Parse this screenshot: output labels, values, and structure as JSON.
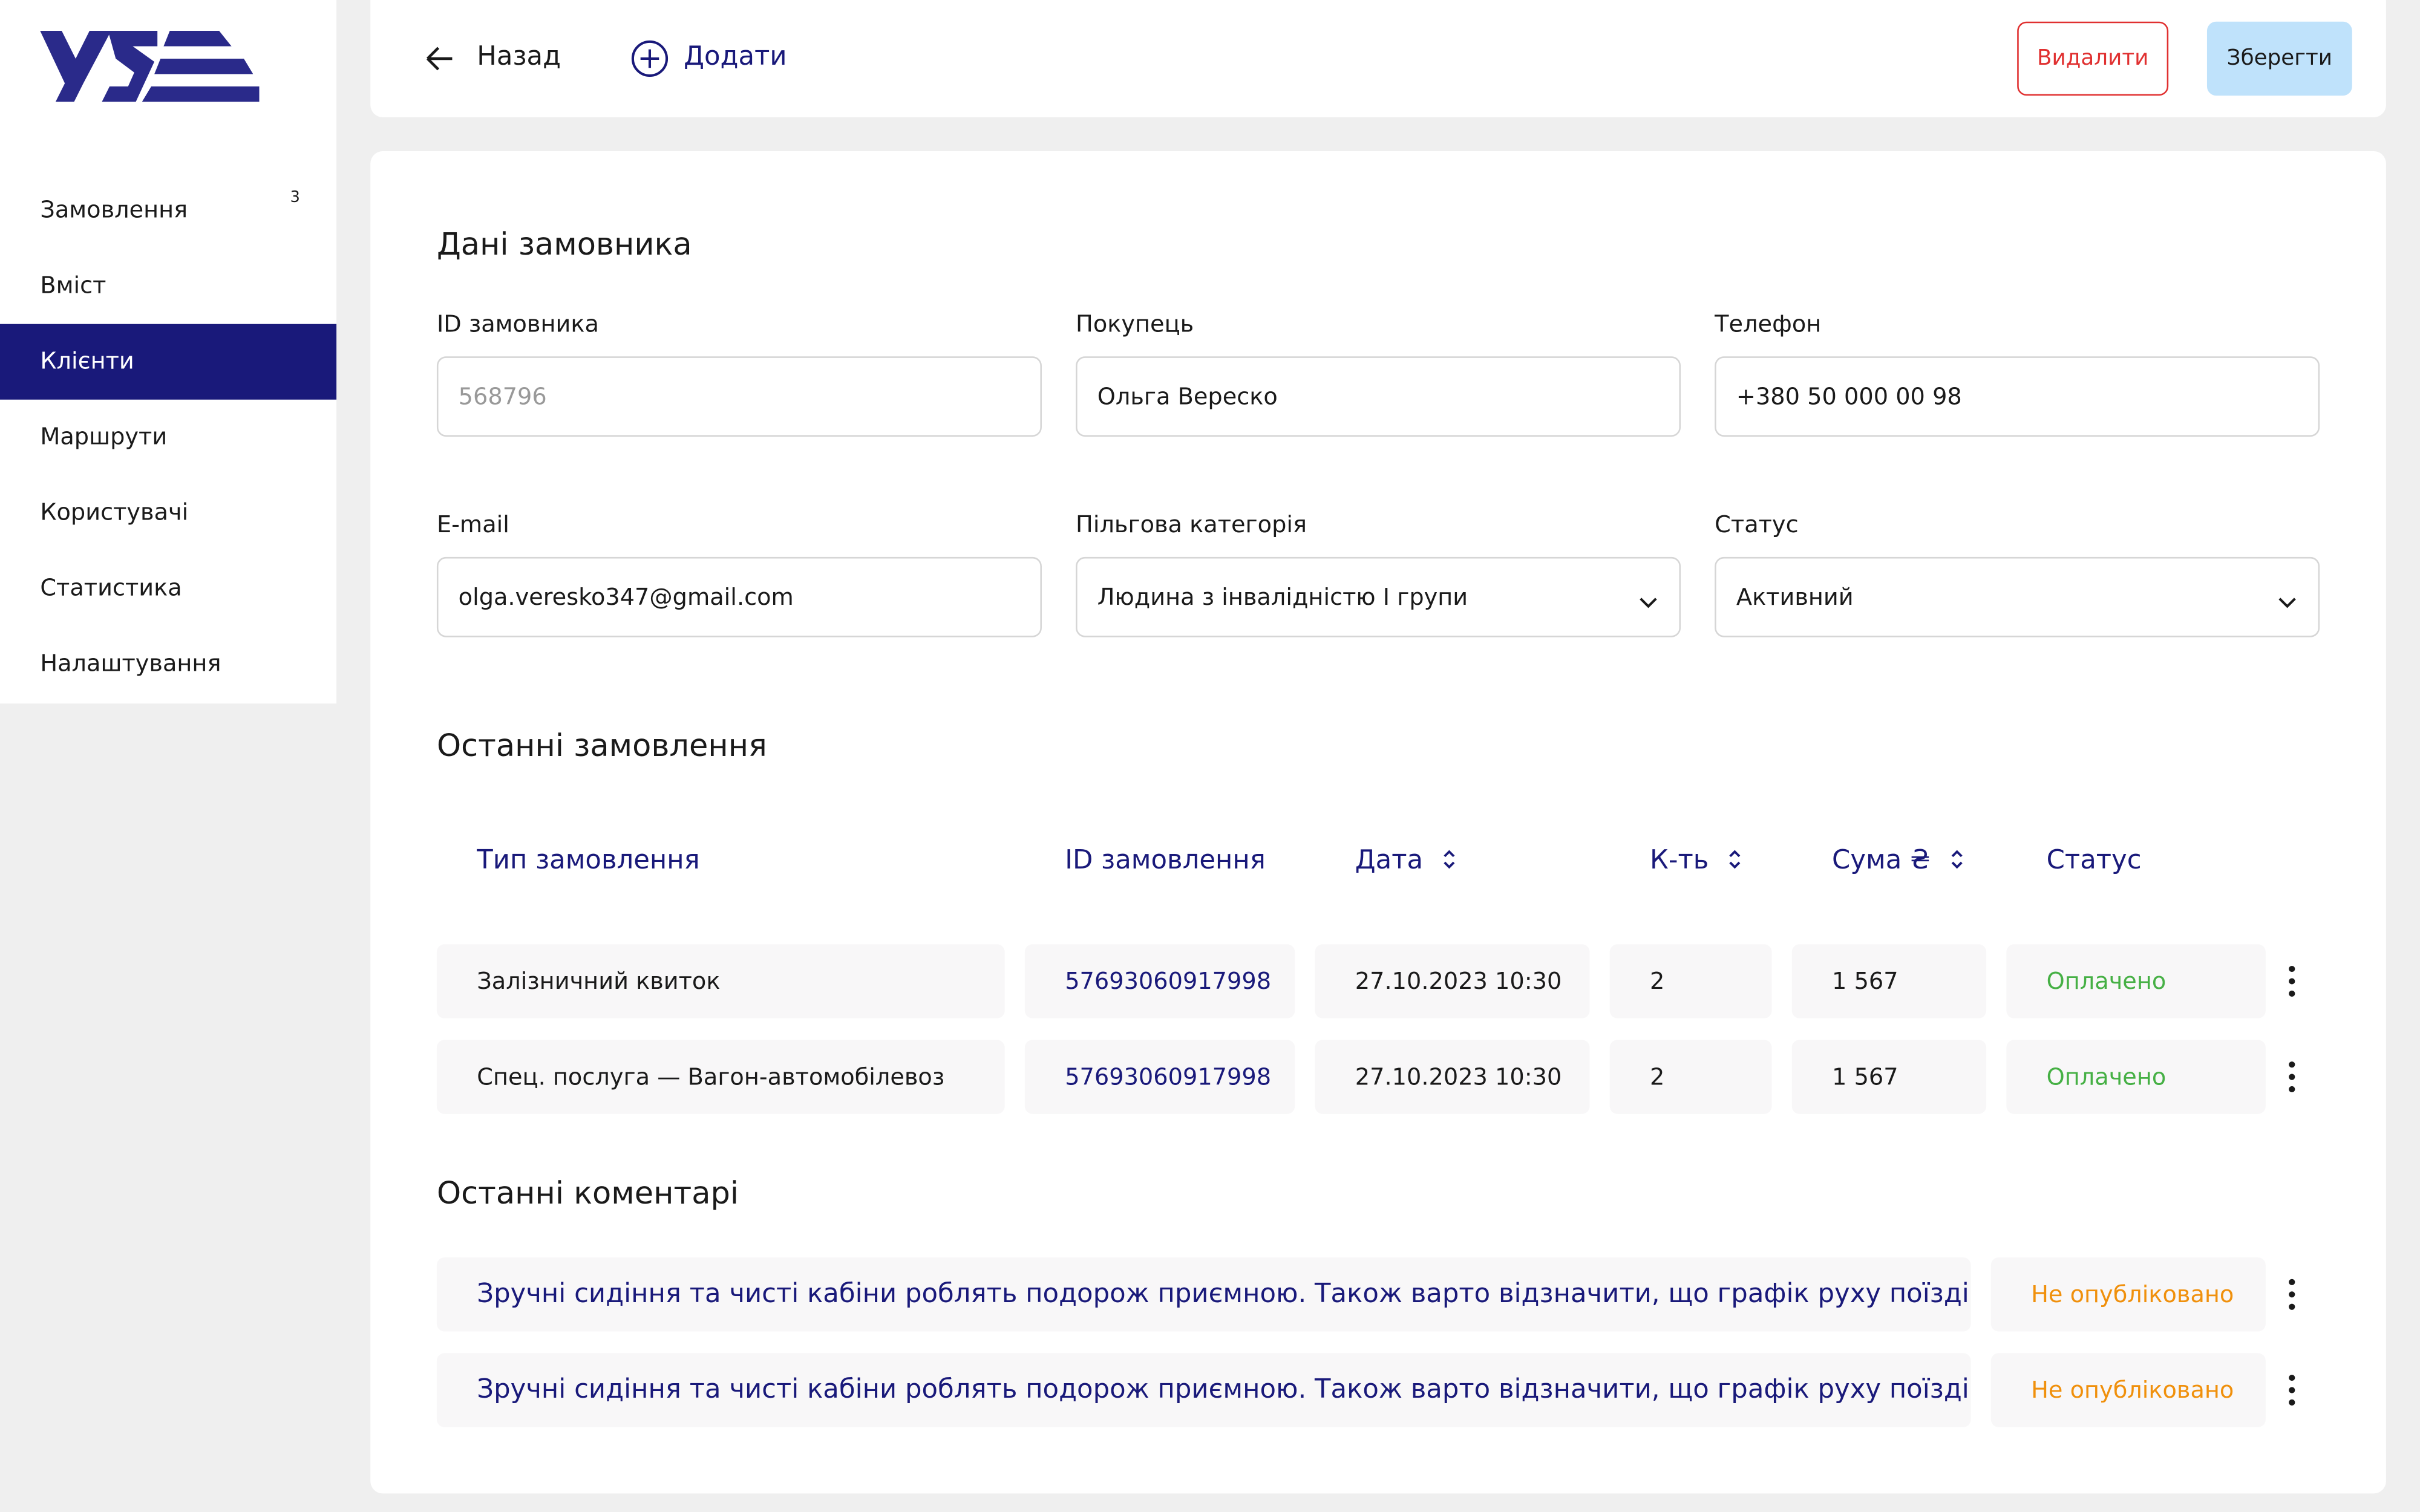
{
  "sidebar": {
    "nav": [
      {
        "label": "Замовлення",
        "badge": "3"
      },
      {
        "label": "Вміст"
      },
      {
        "label": "Клієнти"
      },
      {
        "label": "Маршрути"
      },
      {
        "label": "Користувачі"
      },
      {
        "label": "Статистика"
      },
      {
        "label": "Налаштування"
      }
    ],
    "active_index": 2
  },
  "toolbar": {
    "back": "Назад",
    "add": "Додати",
    "delete": "Видалити",
    "save": "Зберегти"
  },
  "customer": {
    "title": "Дані замовника",
    "fields": [
      {
        "label": "ID замовника",
        "value": "568796",
        "readonly": true
      },
      {
        "label": "Покупець",
        "value": "Ольга Вереско"
      },
      {
        "label": "Телефон",
        "value": "+380 50 000 00 98"
      },
      {
        "label": "E-mail",
        "value": "olga.veresko347@gmail.com"
      },
      {
        "label": "Пільгова категорія",
        "value": "Людина з інвалідністю І групи",
        "select": true
      },
      {
        "label": "Статус",
        "value": "Активний",
        "select": true
      }
    ]
  },
  "orders": {
    "title": "Останні замовлення",
    "columns": [
      {
        "label": "Тип замовлення"
      },
      {
        "label": "ID замовлення"
      },
      {
        "label": "Дата",
        "sortable": true
      },
      {
        "label": "К-ть",
        "sortable": true
      },
      {
        "label": "Сума ₴",
        "sortable": true
      },
      {
        "label": "Статус"
      }
    ],
    "rows": [
      [
        "Залізничний квиток",
        "57693060917998",
        "27.10.2023  10:30",
        "2",
        "1 567",
        "Оплачено"
      ],
      [
        "Спец. послуга  —  Вагон-автомобілевоз",
        "57693060917998",
        "27.10.2023  10:30",
        "2",
        "1 567",
        "Оплачено"
      ]
    ]
  },
  "comments": {
    "title": "Останні коментарі",
    "rows": [
      {
        "text": "Зручні сидіння та чисті кабіни роблять подорож приємною. Також варто відзначити, що графік руху поїздів ...",
        "status": "Не опубліковано"
      },
      {
        "text": "Зручні сидіння та чисті кабіни роблять подорож приємною. Також варто відзначити, що графік руху поїздів ...",
        "status": "Не опубліковано"
      }
    ]
  }
}
